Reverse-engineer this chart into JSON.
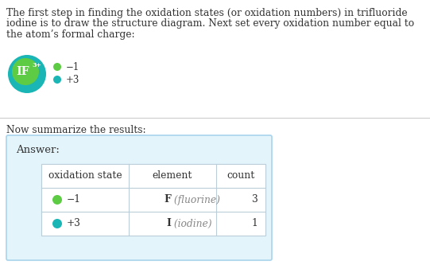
{
  "bg_color": "#ffffff",
  "text_color": "#333333",
  "gray_text": "#888888",
  "para_lines": [
    "The first step in finding the oxidation states (or oxidation numbers) in trifluoride",
    "iodine is to draw the structure diagram. Next set every oxidation number equal to",
    "the atom’s formal charge:"
  ],
  "molecule_outer_color": "#1ab5b5",
  "molecule_inner_color": "#5dcc44",
  "legend_items": [
    {
      "value": "−1",
      "color": "#5dcc44"
    },
    {
      "value": "+3",
      "color": "#1ab5b5"
    }
  ],
  "divider_color": "#cccccc",
  "summarize_text": "Now summarize the results:",
  "answer_box_bg": "#e4f4fb",
  "answer_box_border": "#a8d4eb",
  "answer_label": "Answer:",
  "table_headers": [
    "oxidation state",
    "element",
    "count"
  ],
  "table_rows": [
    {
      "ox_state": "−1",
      "color": "#5dcc44",
      "element_bold": "F",
      "element_rest": " (fluorine)",
      "count": "3"
    },
    {
      "ox_state": "+3",
      "color": "#1ab5b5",
      "element_bold": "I",
      "element_rest": " (iodine)",
      "count": "1"
    }
  ],
  "table_border_color": "#bbcdd8",
  "font_size_para": 8.8,
  "font_size_small": 8.5,
  "font_size_answer": 9.5,
  "font_size_table": 8.8
}
